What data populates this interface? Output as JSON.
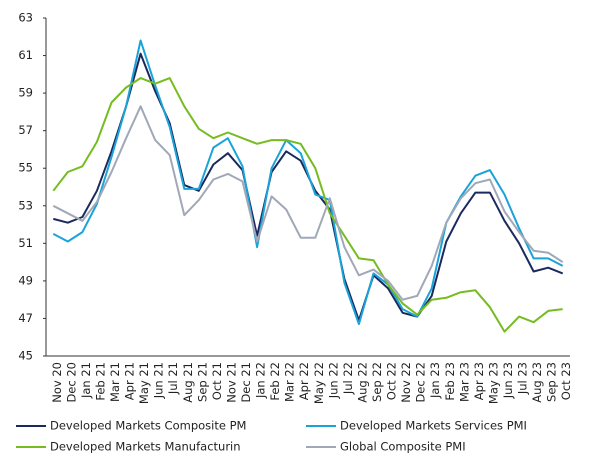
{
  "chart_data": {
    "type": "line",
    "categories": [
      "Nov 20",
      "Dec 20",
      "Jan 21",
      "Feb 21",
      "Mar 21",
      "Apr 21",
      "May 21",
      "Jun 21",
      "Jul 21",
      "Aug 21",
      "Sep 21",
      "Oct 21",
      "Nov 21",
      "Dec 21",
      "Jan 22",
      "Feb 22",
      "Mar 22",
      "Apr 22",
      "May 22",
      "Jun 22",
      "Jul 22",
      "Aug 22",
      "Sep 22",
      "Oct 22",
      "Nov 22",
      "Dec 22",
      "Jan 23",
      "Feb 23",
      "Mar 23",
      "Apr 23",
      "May 23",
      "Jun 23",
      "Jul 23",
      "Aug 23",
      "Sep 23",
      "Oct 23"
    ],
    "series": [
      {
        "name": "Developed Markets Composite PM",
        "color": "#1b2a5e",
        "values": [
          52.3,
          52.1,
          52.4,
          53.8,
          55.9,
          58.3,
          61.1,
          59.1,
          57.4,
          54.1,
          53.8,
          55.2,
          55.8,
          54.9,
          51.4,
          54.8,
          55.9,
          55.4,
          53.8,
          52.8,
          49.1,
          46.9,
          49.3,
          48.6,
          47.3,
          47.1,
          48.2,
          51.1,
          52.6,
          53.7,
          53.7,
          52.2,
          51.0,
          49.5,
          49.7,
          49.4
        ]
      },
      {
        "name": "Developed Markets Services PMI",
        "color": "#1aa3d8",
        "values": [
          51.5,
          51.1,
          51.6,
          53.1,
          55.6,
          58.3,
          61.8,
          59.4,
          57.2,
          53.9,
          53.9,
          56.1,
          56.6,
          55.1,
          50.8,
          55.0,
          56.5,
          55.8,
          53.6,
          53.3,
          48.9,
          46.7,
          49.4,
          48.8,
          47.5,
          47.1,
          48.6,
          52.1,
          53.5,
          54.6,
          54.9,
          53.6,
          51.8,
          50.2,
          50.2,
          49.8
        ]
      },
      {
        "name": "Developed Markets Manufacturin",
        "color": "#76bc21",
        "values": [
          53.8,
          54.8,
          55.1,
          56.4,
          58.5,
          59.3,
          59.8,
          59.5,
          59.8,
          58.3,
          57.1,
          56.6,
          56.9,
          56.6,
          56.3,
          56.5,
          56.5,
          56.3,
          55.0,
          52.6,
          51.4,
          50.2,
          50.1,
          48.8,
          47.8,
          47.2,
          48.0,
          48.1,
          48.4,
          48.5,
          47.6,
          46.3,
          47.1,
          46.8,
          47.4,
          47.5
        ]
      },
      {
        "name": "Global Composite PMI",
        "color": "#a0a8b8",
        "values": [
          53.0,
          52.6,
          52.2,
          53.2,
          54.8,
          56.6,
          58.3,
          56.5,
          55.7,
          52.5,
          53.3,
          54.4,
          54.7,
          54.3,
          51.1,
          53.5,
          52.8,
          51.3,
          51.3,
          53.4,
          50.8,
          49.3,
          49.6,
          49.0,
          48.0,
          48.2,
          49.8,
          52.1,
          53.4,
          54.2,
          54.4,
          52.7,
          51.6,
          50.6,
          50.5,
          50.0
        ]
      }
    ],
    "ylim": [
      45,
      63
    ],
    "yticks": [
      45,
      47,
      49,
      51,
      53,
      55,
      57,
      59,
      61,
      63
    ],
    "grid": false
  }
}
